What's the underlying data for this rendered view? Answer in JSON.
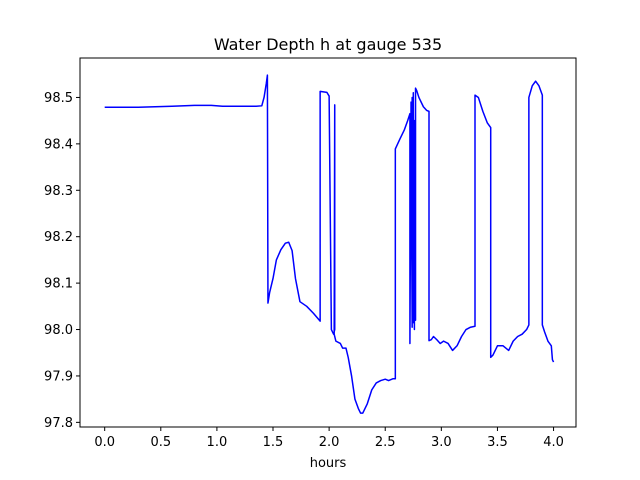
{
  "chart_data": {
    "type": "line",
    "title": "Water Depth h at gauge 535",
    "xlabel": "hours",
    "ylabel": "",
    "xlim": [
      -0.22,
      4.2
    ],
    "ylim": [
      97.79,
      98.585
    ],
    "x_ticks": [
      0.0,
      0.5,
      1.0,
      1.5,
      2.0,
      2.5,
      3.0,
      3.5,
      4.0
    ],
    "x_tick_labels": [
      "0.0",
      "0.5",
      "1.0",
      "1.5",
      "2.0",
      "2.5",
      "3.0",
      "3.5",
      "4.0"
    ],
    "y_ticks": [
      97.8,
      97.9,
      98.0,
      98.1,
      98.2,
      98.3,
      98.4,
      98.5
    ],
    "y_tick_labels": [
      "97.8",
      "97.9",
      "98.0",
      "98.1",
      "98.2",
      "98.3",
      "98.4",
      "98.5"
    ],
    "grid": false,
    "line_color": "#0000ff",
    "series": [
      {
        "x": [
          0.0,
          0.3,
          0.6,
          0.8,
          0.95,
          1.05,
          1.2,
          1.35,
          1.4,
          1.42,
          1.44,
          1.45,
          1.455,
          1.47,
          1.5,
          1.53,
          1.57,
          1.61,
          1.64,
          1.67,
          1.7,
          1.74,
          1.8,
          1.86,
          1.92,
          1.92,
          1.98,
          2.0,
          2.02,
          2.04,
          2.05,
          2.05,
          2.045,
          2.06,
          2.1,
          2.12,
          2.15,
          2.17,
          2.2,
          2.23,
          2.26,
          2.28,
          2.3,
          2.34,
          2.38,
          2.42,
          2.46,
          2.5,
          2.53,
          2.57,
          2.59,
          2.59,
          2.63,
          2.67,
          2.7,
          2.72,
          2.72,
          2.73,
          2.74,
          2.74,
          2.75,
          2.75,
          2.76,
          2.76,
          2.77,
          2.77,
          2.78,
          2.8,
          2.84,
          2.87,
          2.89,
          2.89,
          2.91,
          2.93,
          2.96,
          2.99,
          3.02,
          3.06,
          3.1,
          3.14,
          3.18,
          3.22,
          3.26,
          3.3,
          3.3,
          3.33,
          3.37,
          3.41,
          3.44,
          3.44,
          3.46,
          3.5,
          3.55,
          3.6,
          3.64,
          3.68,
          3.72,
          3.76,
          3.78,
          3.78,
          3.81,
          3.84,
          3.87,
          3.9,
          3.9,
          3.92,
          3.95,
          3.98,
          3.99,
          4.0
        ],
        "y": [
          98.479,
          98.479,
          98.481,
          98.483,
          98.483,
          98.481,
          98.481,
          98.481,
          98.482,
          98.5,
          98.53,
          98.548,
          98.057,
          98.08,
          98.11,
          98.15,
          98.172,
          98.186,
          98.188,
          98.17,
          98.11,
          98.06,
          98.05,
          98.035,
          98.018,
          98.513,
          98.511,
          98.503,
          98.0,
          97.99,
          98.0,
          98.484,
          97.99,
          97.975,
          97.97,
          97.96,
          97.96,
          97.94,
          97.9,
          97.85,
          97.83,
          97.82,
          97.82,
          97.84,
          97.87,
          97.885,
          97.89,
          97.893,
          97.89,
          97.894,
          97.894,
          98.389,
          98.41,
          98.43,
          98.45,
          98.465,
          97.97,
          98.49,
          98.005,
          98.5,
          98.015,
          98.51,
          98.0,
          98.45,
          98.02,
          98.52,
          98.515,
          98.5,
          98.48,
          98.472,
          98.47,
          97.976,
          97.978,
          97.985,
          97.978,
          97.97,
          97.975,
          97.97,
          97.955,
          97.965,
          97.985,
          98.0,
          98.005,
          98.007,
          98.505,
          98.5,
          98.47,
          98.445,
          98.435,
          97.94,
          97.945,
          97.965,
          97.965,
          97.955,
          97.975,
          97.985,
          97.99,
          98.0,
          98.01,
          98.5,
          98.525,
          98.535,
          98.525,
          98.505,
          98.01,
          97.995,
          97.975,
          97.965,
          97.935,
          97.93
        ]
      }
    ]
  }
}
